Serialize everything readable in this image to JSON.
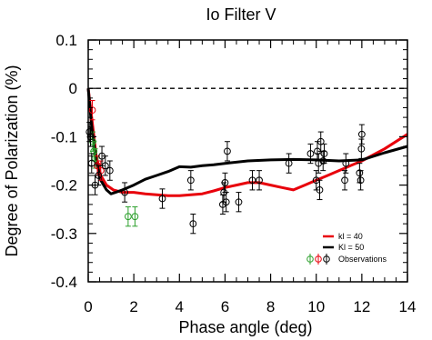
{
  "chart_data": {
    "type": "line",
    "title": "Io Filter V",
    "xlabel": "Phase angle (deg)",
    "ylabel": "Degree of Polarization (%)",
    "xlim": [
      0,
      14
    ],
    "ylim": [
      -0.4,
      0.1
    ],
    "x_ticks": [
      0,
      2,
      4,
      6,
      8,
      10,
      12,
      14
    ],
    "x_tick_labels": [
      "0",
      "2",
      "4",
      "6",
      "8",
      "10",
      "12",
      "14"
    ],
    "y_ticks": [
      -0.4,
      -0.3,
      -0.2,
      -0.1,
      0,
      0.1
    ],
    "y_tick_labels": [
      "-0.4",
      "-0.3",
      "-0.2",
      "-0.1",
      "0",
      "0.1"
    ],
    "zero_line": true,
    "legend_position": "bottom-right",
    "series": [
      {
        "name": "kl = 40",
        "color": "#e8000b",
        "style": "line",
        "x": [
          0.0,
          0.15,
          0.35,
          0.55,
          0.8,
          1.1,
          1.5,
          2.0,
          2.5,
          3.0,
          3.5,
          4.0,
          5.0,
          5.5,
          6.0,
          6.5,
          7.0,
          7.5,
          8.0,
          8.5,
          9.0,
          9.5,
          10.0,
          10.5,
          11.0,
          11.5,
          12.0,
          13.0,
          14.0
        ],
        "y": [
          0.0,
          -0.06,
          -0.14,
          -0.18,
          -0.2,
          -0.21,
          -0.215,
          -0.215,
          -0.218,
          -0.22,
          -0.222,
          -0.222,
          -0.218,
          -0.212,
          -0.205,
          -0.2,
          -0.195,
          -0.195,
          -0.2,
          -0.205,
          -0.21,
          -0.2,
          -0.19,
          -0.18,
          -0.17,
          -0.16,
          -0.15,
          -0.125,
          -0.095
        ]
      },
      {
        "name": "Kl = 50",
        "color": "#000000",
        "style": "line",
        "x": [
          0.0,
          0.15,
          0.35,
          0.55,
          0.8,
          1.0,
          1.2,
          1.5,
          2.0,
          2.5,
          3.0,
          3.5,
          4.0,
          4.5,
          5.0,
          5.5,
          6.0,
          7.0,
          8.0,
          9.0,
          10.0,
          11.0,
          12.0,
          13.0,
          14.0
        ],
        "y": [
          0.0,
          -0.08,
          -0.15,
          -0.19,
          -0.21,
          -0.218,
          -0.215,
          -0.21,
          -0.2,
          -0.188,
          -0.18,
          -0.172,
          -0.162,
          -0.163,
          -0.16,
          -0.158,
          -0.155,
          -0.15,
          -0.148,
          -0.147,
          -0.148,
          -0.15,
          -0.148,
          -0.133,
          -0.12
        ]
      }
    ],
    "observations": {
      "legend_label": "Observations",
      "marker": "open-circle-with-error-bar",
      "groups": [
        {
          "color": "#2ca02c",
          "points": [
            {
              "x": 0.2,
              "y": -0.11,
              "err": 0.02
            },
            {
              "x": 0.25,
              "y": -0.13,
              "err": 0.02
            },
            {
              "x": 0.3,
              "y": -0.145,
              "err": 0.02
            },
            {
              "x": 1.75,
              "y": -0.265,
              "err": 0.02
            },
            {
              "x": 2.05,
              "y": -0.265,
              "err": 0.02
            }
          ]
        },
        {
          "color": "#e8000b",
          "points": [
            {
              "x": 0.18,
              "y": -0.045,
              "err": 0.02
            },
            {
              "x": 0.4,
              "y": -0.16,
              "err": 0.02
            },
            {
              "x": 0.55,
              "y": -0.17,
              "err": 0.02
            }
          ]
        },
        {
          "color": "#000000",
          "points": [
            {
              "x": 0.05,
              "y": -0.09,
              "err": 0.02
            },
            {
              "x": 0.1,
              "y": -0.1,
              "err": 0.02
            },
            {
              "x": 0.15,
              "y": -0.155,
              "err": 0.02
            },
            {
              "x": 0.3,
              "y": -0.2,
              "err": 0.02
            },
            {
              "x": 0.45,
              "y": -0.18,
              "err": 0.02
            },
            {
              "x": 0.6,
              "y": -0.14,
              "err": 0.02
            },
            {
              "x": 0.75,
              "y": -0.16,
              "err": 0.02
            },
            {
              "x": 0.95,
              "y": -0.17,
              "err": 0.02
            },
            {
              "x": 1.6,
              "y": -0.215,
              "err": 0.02
            },
            {
              "x": 3.25,
              "y": -0.228,
              "err": 0.02
            },
            {
              "x": 4.5,
              "y": -0.19,
              "err": 0.02
            },
            {
              "x": 4.6,
              "y": -0.28,
              "err": 0.02
            },
            {
              "x": 5.9,
              "y": -0.24,
              "err": 0.02
            },
            {
              "x": 5.95,
              "y": -0.215,
              "err": 0.02
            },
            {
              "x": 6.0,
              "y": -0.195,
              "err": 0.02
            },
            {
              "x": 6.05,
              "y": -0.235,
              "err": 0.02
            },
            {
              "x": 6.1,
              "y": -0.13,
              "err": 0.02
            },
            {
              "x": 6.6,
              "y": -0.235,
              "err": 0.02
            },
            {
              "x": 7.2,
              "y": -0.19,
              "err": 0.02
            },
            {
              "x": 7.5,
              "y": -0.19,
              "err": 0.02
            },
            {
              "x": 8.8,
              "y": -0.155,
              "err": 0.02
            },
            {
              "x": 9.75,
              "y": -0.135,
              "err": 0.02
            },
            {
              "x": 10.0,
              "y": -0.19,
              "err": 0.02
            },
            {
              "x": 10.05,
              "y": -0.13,
              "err": 0.02
            },
            {
              "x": 10.1,
              "y": -0.155,
              "err": 0.02
            },
            {
              "x": 10.15,
              "y": -0.21,
              "err": 0.02
            },
            {
              "x": 10.2,
              "y": -0.11,
              "err": 0.02
            },
            {
              "x": 10.3,
              "y": -0.15,
              "err": 0.02
            },
            {
              "x": 10.35,
              "y": -0.135,
              "err": 0.02
            },
            {
              "x": 11.25,
              "y": -0.19,
              "err": 0.02
            },
            {
              "x": 11.3,
              "y": -0.155,
              "err": 0.02
            },
            {
              "x": 11.9,
              "y": -0.175,
              "err": 0.02
            },
            {
              "x": 11.95,
              "y": -0.19,
              "err": 0.02
            },
            {
              "x": 11.98,
              "y": -0.125,
              "err": 0.02
            },
            {
              "x": 12.0,
              "y": -0.095,
              "err": 0.02
            }
          ]
        }
      ]
    }
  }
}
